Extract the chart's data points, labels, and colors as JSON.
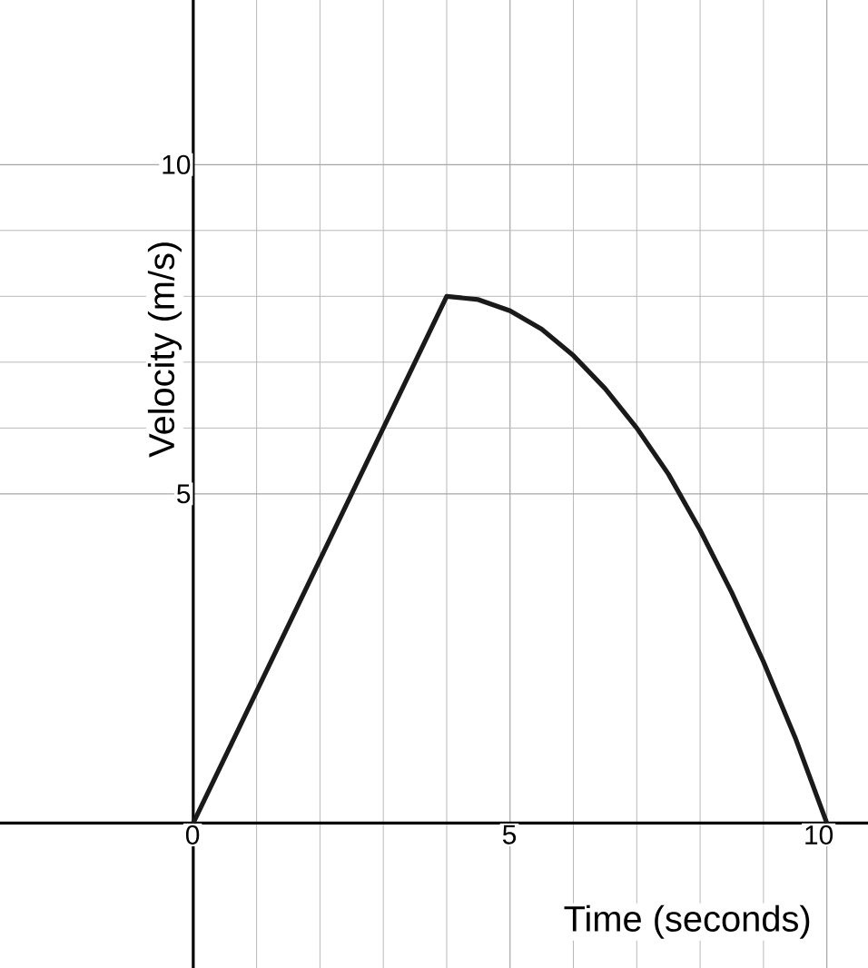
{
  "chart_data": {
    "type": "line",
    "xlabel": "Time (seconds)",
    "ylabel": "Velocity (m/s)",
    "x": [
      0,
      4,
      4.5,
      5,
      5.5,
      6,
      6.5,
      7,
      7.5,
      8,
      8.5,
      9,
      9.5,
      10
    ],
    "series": [
      {
        "color": "#1a1a1a",
        "values": [
          0,
          8,
          7.95,
          7.78,
          7.5,
          7.1,
          6.6,
          6,
          5.3,
          4.45,
          3.5,
          2.45,
          1.3,
          0
        ]
      }
    ],
    "xlim": [
      -3.05,
      10.65
    ],
    "ylim": [
      -2.2,
      12.5
    ],
    "xticks": [
      0,
      5,
      10
    ],
    "yticks": [
      5,
      10
    ],
    "grid": true,
    "marker": "none",
    "line_style": "solid"
  }
}
